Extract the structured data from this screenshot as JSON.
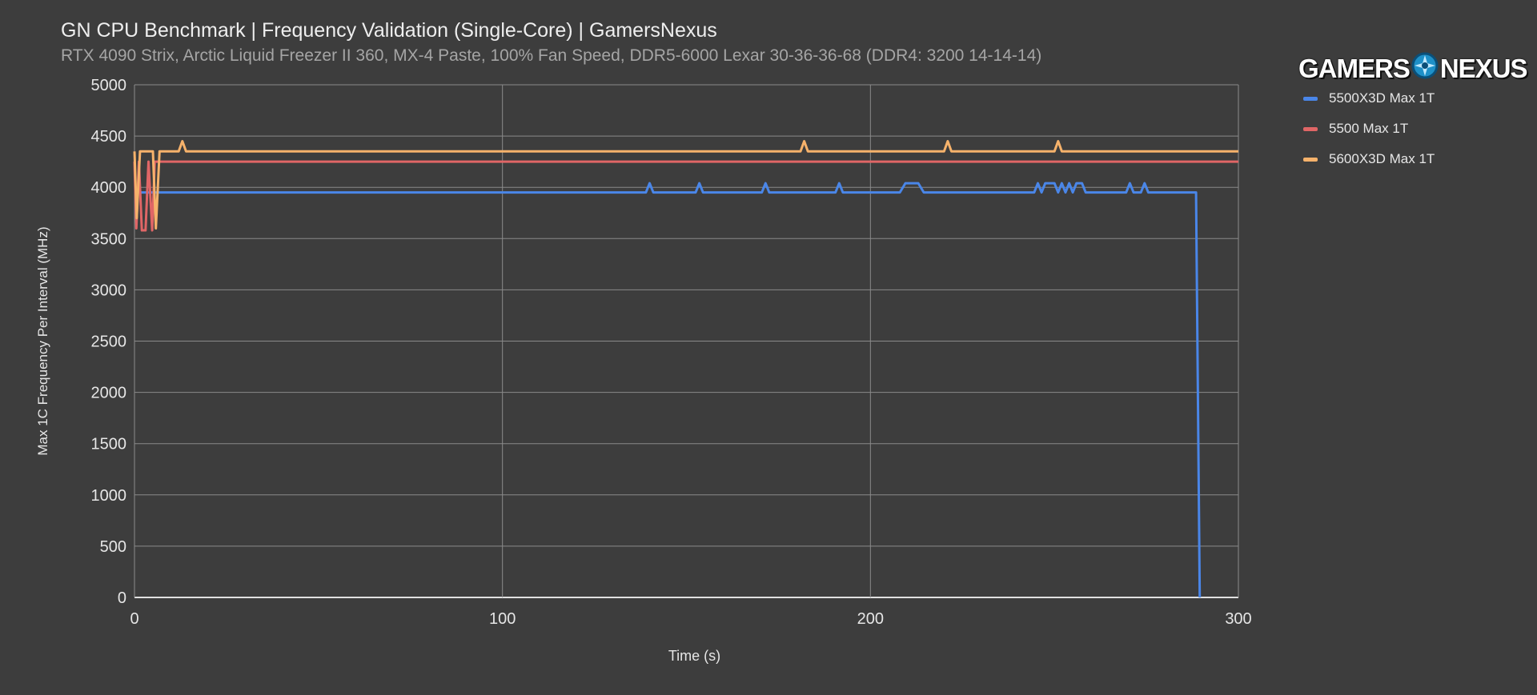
{
  "header": {
    "title": "GN CPU Benchmark | Frequency Validation (Single-Core) | GamersNexus",
    "subtitle": "RTX 4090 Strix, Arctic Liquid Freezer II 360, MX-4 Paste, 100% Fan Speed, DDR5-6000 Lexar 30-36-36-68 (DDR4: 3200 14-14-14)"
  },
  "logo": {
    "left_text": "GAMERS",
    "right_text": "NEXUS",
    "icon": "gamersnexus-emblem-icon"
  },
  "colors": {
    "background": "#3d3d3d",
    "grid": "#8a8a8a",
    "axis": "#e0e0e0",
    "s5500x3d": "#4a86e8",
    "s5500": "#e06666",
    "s5600x3d": "#f6b26b"
  },
  "chart_data": {
    "type": "line",
    "title": "GN CPU Benchmark | Frequency Validation (Single-Core) | GamersNexus",
    "xlabel": "Time (s)",
    "ylabel": "Max 1C Frequency Per Interval (MHz)",
    "xlim": [
      0,
      300
    ],
    "ylim": [
      0,
      5000
    ],
    "xticks": [
      0,
      100,
      200,
      300
    ],
    "yticks": [
      0,
      500,
      1000,
      1500,
      2000,
      2500,
      3000,
      3500,
      4000,
      4500,
      5000
    ],
    "grid": true,
    "legend_position": "right",
    "series": [
      {
        "name": "5500X3D Max 1T",
        "color": "#4a86e8",
        "points": [
          [
            0,
            3950
          ],
          [
            139,
            3950
          ],
          [
            140,
            4040
          ],
          [
            141,
            3950
          ],
          [
            152.5,
            3950
          ],
          [
            153.5,
            4040
          ],
          [
            154.5,
            3950
          ],
          [
            170.5,
            3950
          ],
          [
            171.5,
            4040
          ],
          [
            172.5,
            3950
          ],
          [
            190.5,
            3950
          ],
          [
            191.5,
            4040
          ],
          [
            192.5,
            3950
          ],
          [
            208,
            3950
          ],
          [
            209.5,
            4040
          ],
          [
            213,
            4040
          ],
          [
            214.5,
            3950
          ],
          [
            244.5,
            3950
          ],
          [
            245.5,
            4040
          ],
          [
            246.5,
            3950
          ],
          [
            247.5,
            4040
          ],
          [
            250,
            4040
          ],
          [
            251,
            3950
          ],
          [
            252,
            4040
          ],
          [
            253,
            3950
          ],
          [
            254,
            4040
          ],
          [
            255,
            3950
          ],
          [
            256,
            4040
          ],
          [
            257.5,
            4040
          ],
          [
            258.5,
            3950
          ],
          [
            269.5,
            3950
          ],
          [
            270.5,
            4040
          ],
          [
            271.5,
            3950
          ],
          [
            273.5,
            3950
          ],
          [
            274.5,
            4040
          ],
          [
            275.5,
            3950
          ],
          [
            288.5,
            3950
          ],
          [
            289.5,
            0
          ]
        ]
      },
      {
        "name": "5500 Max 1T",
        "color": "#e06666",
        "points": [
          [
            0,
            4250
          ],
          [
            0.5,
            3600
          ],
          [
            1.2,
            4250
          ],
          [
            2,
            3580
          ],
          [
            3,
            3580
          ],
          [
            3.8,
            4250
          ],
          [
            4.8,
            3580
          ],
          [
            5.5,
            4250
          ],
          [
            300,
            4250
          ]
        ]
      },
      {
        "name": "5600X3D Max 1T",
        "color": "#f6b26b",
        "points": [
          [
            0,
            4350
          ],
          [
            0.6,
            3700
          ],
          [
            1.5,
            4350
          ],
          [
            5,
            4350
          ],
          [
            5.8,
            3600
          ],
          [
            6.8,
            4350
          ],
          [
            12,
            4350
          ],
          [
            13,
            4450
          ],
          [
            14,
            4350
          ],
          [
            181,
            4350
          ],
          [
            182,
            4450
          ],
          [
            183,
            4350
          ],
          [
            220,
            4350
          ],
          [
            221,
            4450
          ],
          [
            222,
            4350
          ],
          [
            250,
            4350
          ],
          [
            251,
            4450
          ],
          [
            252,
            4350
          ],
          [
            300,
            4350
          ]
        ]
      }
    ]
  }
}
